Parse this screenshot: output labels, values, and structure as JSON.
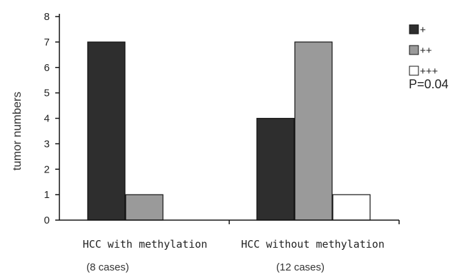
{
  "chart_data": {
    "type": "bar",
    "ylabel": "tumor numbers",
    "ylim": [
      0,
      8
    ],
    "yticks": [
      0,
      1,
      2,
      3,
      4,
      5,
      6,
      7,
      8
    ],
    "categories": [
      "HCC with methylation",
      "HCC without methylation"
    ],
    "category_sublabels": [
      "(8 cases)",
      "(12 cases)"
    ],
    "series": [
      {
        "name": "+",
        "color": "#2e2e2e",
        "values": [
          7,
          4
        ]
      },
      {
        "name": "++",
        "color": "#9a9a9a",
        "values": [
          1,
          7
        ]
      },
      {
        "name": "+++",
        "color": "#ffffff",
        "values": [
          0,
          1
        ]
      }
    ],
    "annotation": "P=0.04",
    "legend_position": "right"
  }
}
